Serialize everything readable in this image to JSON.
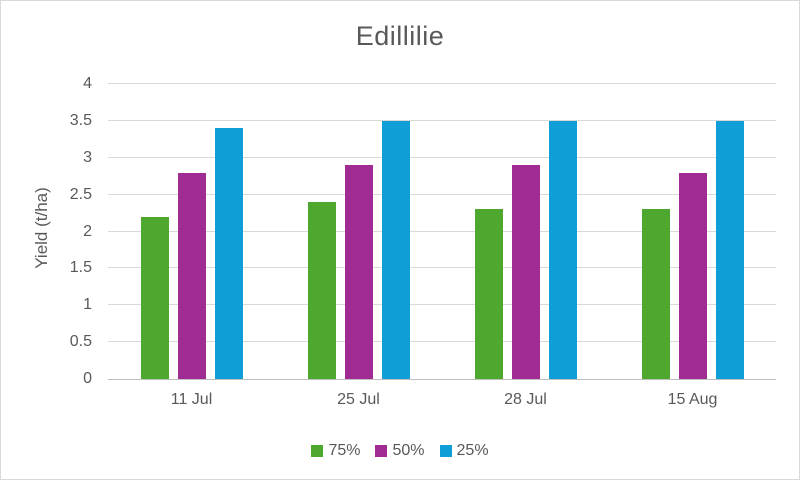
{
  "chart_data": {
    "type": "bar",
    "title": "Edillilie",
    "xlabel": "",
    "ylabel": "Yield (t/ha)",
    "categories": [
      "11 Jul",
      "25 Jul",
      "28 Jul",
      "15 Aug"
    ],
    "series": [
      {
        "name": "75%",
        "color": "#4EA72E",
        "values": [
          2.2,
          2.4,
          2.3,
          2.3
        ]
      },
      {
        "name": "50%",
        "color": "#A02B93",
        "values": [
          2.8,
          2.9,
          2.9,
          2.8
        ]
      },
      {
        "name": "25%",
        "color": "#0F9ED5",
        "values": [
          3.4,
          3.5,
          3.5,
          3.5
        ]
      }
    ],
    "ylim": [
      0,
      4
    ],
    "yticks": [
      0,
      0.5,
      1,
      1.5,
      2,
      2.5,
      3,
      3.5,
      4
    ],
    "grid": true,
    "legend_position": "bottom",
    "colors": {
      "text": "#595959",
      "gridline": "#D9D9D9",
      "axis_line": "#BFBFBF",
      "chart_border": "#D9D9D9",
      "background": "#FFFFFF"
    }
  }
}
